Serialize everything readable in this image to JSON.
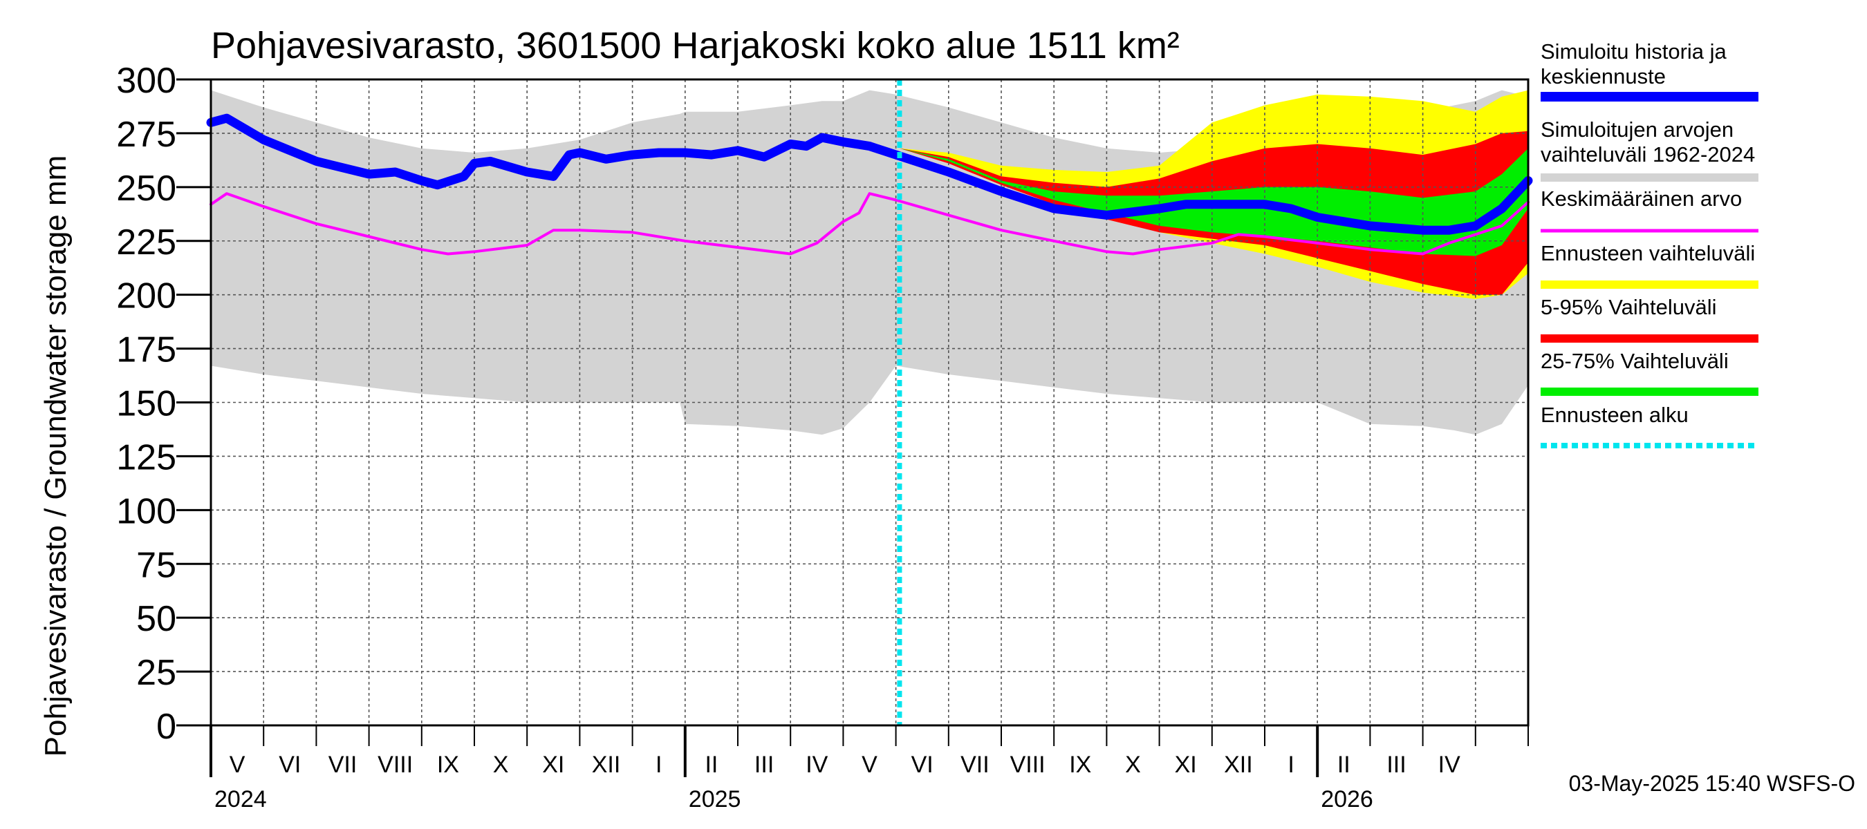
{
  "chart_data": {
    "type": "area",
    "title": "Pohjavesivarasto, 3601500 Harjakoski koko alue 1511 km²",
    "ylabel": "Pohjavesivarasto / Groundwater storage   mm",
    "yunit": "mm",
    "ylim": [
      0,
      300
    ],
    "yticks": [
      0,
      25,
      50,
      75,
      100,
      125,
      150,
      175,
      200,
      225,
      250,
      275,
      300
    ],
    "x_unit": "months since 2024-04-01",
    "xlim": [
      0,
      25
    ],
    "forecast_start": 13.07,
    "month_labels": [
      "V",
      "VI",
      "VII",
      "VIII",
      "IX",
      "X",
      "XI",
      "XII",
      "I",
      "II",
      "III",
      "IV",
      "V",
      "VI",
      "VII",
      "VIII",
      "IX",
      "X",
      "XI",
      "XII",
      "I",
      "II",
      "III",
      "IV"
    ],
    "year_labels": [
      {
        "text": "2024",
        "x": 0
      },
      {
        "text": "2025",
        "x": 9
      },
      {
        "text": "2026",
        "x": 21
      }
    ],
    "timestamp": "03-May-2025 15:40 WSFS-O",
    "legend": [
      {
        "label": "Simuloitu historia ja keskiennuste",
        "lines": [
          "Simuloitu historia ja",
          "keskiennuste"
        ],
        "color": "#0000ff",
        "style": "thick"
      },
      {
        "label": "Simuloitujen arvojen vaihteluväli 1962-2024",
        "lines": [
          "Simuloitujen arvojen",
          "vaihteluväli 1962-2024"
        ],
        "color": "#d3d3d3",
        "style": "band"
      },
      {
        "label": "Keskimääräinen arvo",
        "lines": [
          "Keskimääräinen arvo"
        ],
        "color": "#ff00ff",
        "style": "line"
      },
      {
        "label": "Ennusteen vaihteluväli",
        "lines": [
          "Ennusteen vaihteluväli"
        ],
        "color": "#ffff00",
        "style": "band"
      },
      {
        "label": "5-95% Vaihteluväli",
        "lines": [
          "5-95% Vaihteluväli"
        ],
        "color": "#ff0000",
        "style": "band"
      },
      {
        "label": "25-75% Vaihteluväli",
        "lines": [
          "25-75% Vaihteluväli"
        ],
        "color": "#00ee00",
        "style": "band"
      },
      {
        "label": "Ennusteen alku",
        "lines": [
          "Ennusteen alku"
        ],
        "color": "#00e5ee",
        "style": "dotted"
      }
    ],
    "series": [
      {
        "name": "Simuloitujen arvojen vaihteluväli 1962-2024",
        "kind": "band",
        "color": "#d3d3d3",
        "x": [
          0,
          1,
          2,
          3,
          4,
          5,
          6,
          7,
          8,
          8.9,
          9,
          10,
          11,
          11.6,
          12,
          12.5,
          13,
          14,
          15,
          16,
          17,
          18,
          19,
          20,
          20.9,
          21,
          22,
          23,
          23.6,
          24,
          24.5,
          25
        ],
        "upper": [
          295,
          287,
          280,
          273,
          268,
          266,
          268,
          272,
          280,
          284,
          285,
          285,
          288,
          290,
          290,
          295,
          293,
          287,
          280,
          273,
          268,
          266,
          268,
          272,
          280,
          284,
          285,
          285,
          288,
          290,
          295,
          292
        ],
        "lower": [
          167,
          163,
          160,
          157,
          154,
          152,
          150,
          150,
          150,
          150,
          140,
          139,
          137,
          135,
          138,
          150,
          167,
          163,
          160,
          157,
          154,
          152,
          150,
          150,
          150,
          150,
          140,
          139,
          137,
          135,
          140,
          158
        ]
      },
      {
        "name": "Ennusteen vaihteluväli",
        "kind": "band",
        "color": "#ffff00",
        "x": [
          13.07,
          14,
          15,
          16,
          17,
          18,
          19,
          20,
          21,
          22,
          23,
          24,
          24.5,
          25
        ],
        "upper": [
          268,
          266,
          260,
          258,
          257,
          260,
          280,
          288,
          293,
          292,
          290,
          285,
          292,
          295
        ],
        "lower": [
          268,
          262,
          252,
          243,
          236,
          229,
          224,
          219,
          213,
          206,
          201,
          198,
          200,
          210
        ]
      },
      {
        "name": "5-95% Vaihteluväli",
        "kind": "band",
        "color": "#ff0000",
        "x": [
          13.07,
          14,
          15,
          16,
          17,
          18,
          19,
          20,
          21,
          22,
          23,
          24,
          24.5,
          25
        ],
        "upper": [
          268,
          264,
          255,
          252,
          250,
          254,
          262,
          268,
          270,
          268,
          265,
          270,
          275,
          276
        ],
        "lower": [
          268,
          261,
          251,
          242,
          235,
          229,
          226,
          223,
          217,
          211,
          205,
          200,
          200,
          215
        ]
      },
      {
        "name": "25-75% Vaihteluväli",
        "kind": "band",
        "color": "#00ee00",
        "x": [
          13.07,
          14,
          15,
          16,
          17,
          18,
          19,
          20,
          21,
          22,
          23,
          24,
          24.5,
          25
        ],
        "upper": [
          268,
          263,
          253,
          248,
          246,
          246,
          248,
          250,
          250,
          248,
          245,
          248,
          256,
          268
        ],
        "lower": [
          268,
          262,
          252,
          244,
          238,
          232,
          229,
          227,
          225,
          222,
          219,
          218,
          223,
          240
        ]
      },
      {
        "name": "Keskimääräinen arvo",
        "kind": "line",
        "color": "#ff00ff",
        "x": [
          0,
          0.3,
          1,
          2,
          3,
          4,
          4.5,
          5,
          6,
          6.5,
          7,
          8,
          9,
          10,
          11,
          11.5,
          12,
          12.3,
          12.5,
          13,
          14,
          15,
          16,
          17,
          17.5,
          18,
          19,
          19.5,
          20,
          21,
          22,
          23,
          23.5,
          24,
          24.5,
          25
        ],
        "values": [
          242,
          247,
          241,
          233,
          227,
          221,
          219,
          220,
          223,
          230,
          230,
          229,
          225,
          222,
          219,
          224,
          234,
          238,
          247,
          244,
          237,
          230,
          225,
          220,
          219,
          221,
          224,
          228,
          227,
          224,
          221,
          219,
          224,
          228,
          232,
          243
        ]
      },
      {
        "name": "Simuloitu historia ja keskiennuste",
        "kind": "line",
        "color": "#0000ff",
        "x": [
          0,
          0.3,
          1,
          2,
          3,
          3.5,
          4,
          4.3,
          4.8,
          5,
          5.3,
          6,
          6.5,
          6.8,
          7,
          7.5,
          8,
          8.5,
          9,
          9.5,
          10,
          10.5,
          11,
          11.3,
          11.6,
          12,
          12.5,
          13,
          14,
          15,
          16,
          17,
          18,
          18.5,
          19,
          20,
          20.5,
          21,
          22,
          23,
          23.5,
          24,
          24.5,
          25
        ],
        "values": [
          280,
          282,
          272,
          262,
          256,
          257,
          253,
          251,
          255,
          261,
          262,
          257,
          255,
          265,
          266,
          263,
          265,
          266,
          266,
          265,
          267,
          264,
          270,
          269,
          273,
          271,
          269,
          265,
          257,
          248,
          240,
          237,
          240,
          242,
          242,
          242,
          240,
          236,
          232,
          230,
          230,
          232,
          240,
          253
        ]
      }
    ]
  }
}
